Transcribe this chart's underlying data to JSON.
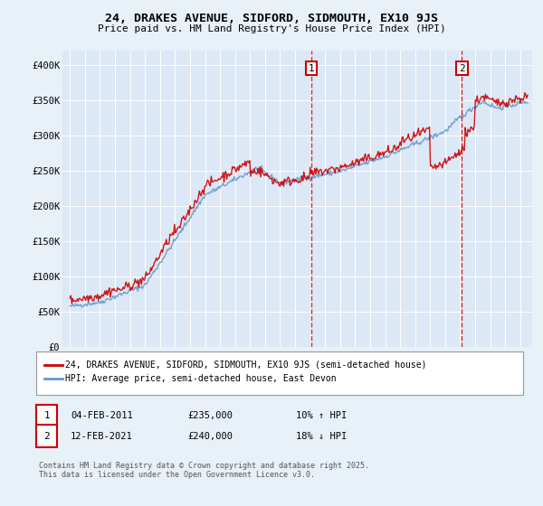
{
  "title": "24, DRAKES AVENUE, SIDFORD, SIDMOUTH, EX10 9JS",
  "subtitle": "Price paid vs. HM Land Registry's House Price Index (HPI)",
  "background_color": "#e8f0f8",
  "plot_bg_color": "#dce8f5",
  "legend_label_red": "24, DRAKES AVENUE, SIDFORD, SIDMOUTH, EX10 9JS (semi-detached house)",
  "legend_label_blue": "HPI: Average price, semi-detached house, East Devon",
  "annotation1_date": "04-FEB-2011",
  "annotation1_price": "£235,000",
  "annotation1_hpi": "10% ↑ HPI",
  "annotation2_date": "12-FEB-2021",
  "annotation2_price": "£240,000",
  "annotation2_hpi": "18% ↓ HPI",
  "footnote": "Contains HM Land Registry data © Crown copyright and database right 2025.\nThis data is licensed under the Open Government Licence v3.0.",
  "vline1_x": 2011.09,
  "vline2_x": 2021.12,
  "ylim": [
    0,
    420000
  ],
  "xlim_start": 1994.5,
  "xlim_end": 2025.8,
  "yticks": [
    0,
    50000,
    100000,
    150000,
    200000,
    250000,
    300000,
    350000,
    400000
  ],
  "ytick_labels": [
    "£0",
    "£50K",
    "£100K",
    "£150K",
    "£200K",
    "£250K",
    "£300K",
    "£350K",
    "£400K"
  ],
  "red_color": "#cc0000",
  "blue_color": "#6699cc",
  "vline_color": "#cc0000",
  "grid_color": "#ffffff"
}
